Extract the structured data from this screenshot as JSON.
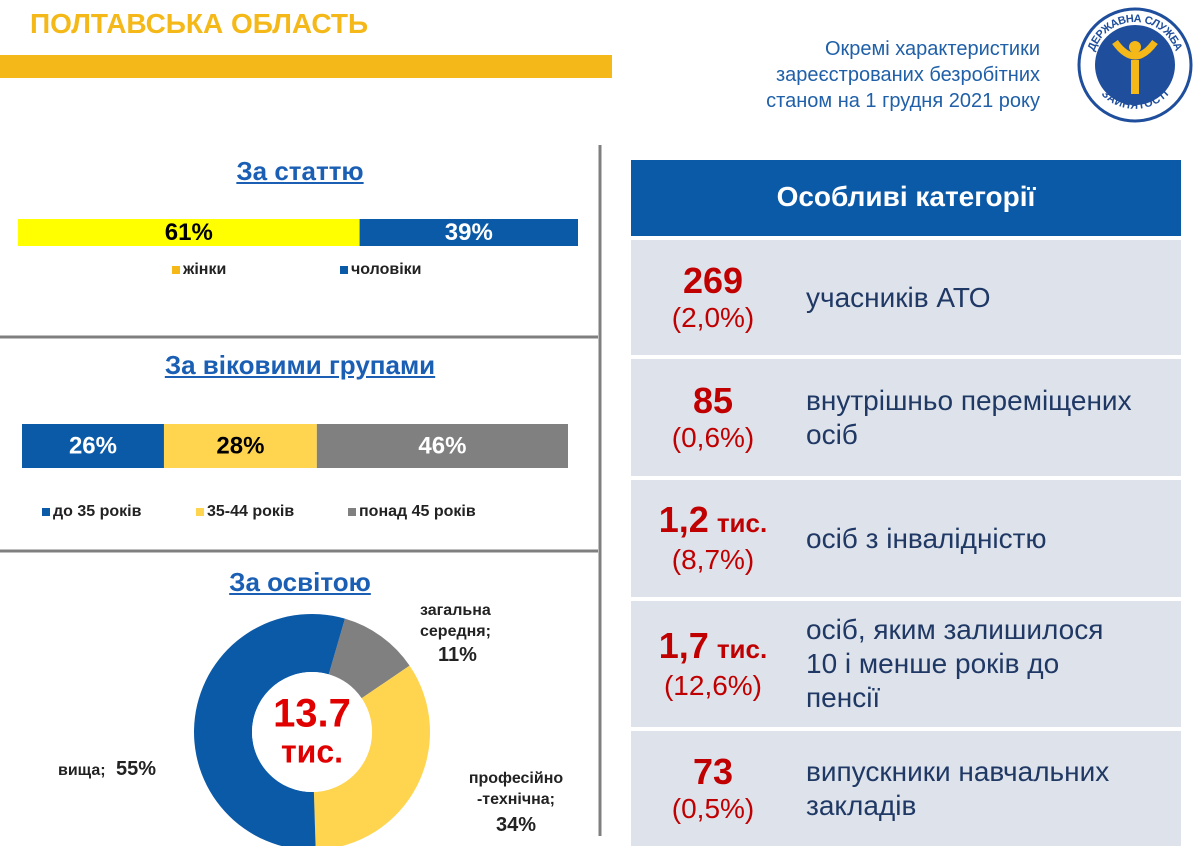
{
  "header": {
    "title": "ПОЛТАВСЬКА ОБЛАСТЬ",
    "subtitle": [
      "Окремі характеристики",
      "зареєстрованих безробітних",
      "станом на 1 грудня 2021 року"
    ]
  },
  "logo": {
    "top": "ДЕРЖАВНА СЛУЖБА",
    "bottom": "ЗАЙНЯТОСТІ"
  },
  "chart_data": [
    {
      "type": "stacked-bar",
      "title": "За статтю",
      "series": [
        {
          "name": "жінки",
          "color": "#ffff00",
          "values": [
            61
          ],
          "value_labels": [
            "61%"
          ]
        },
        {
          "name": "чоловіки",
          "color": "#0b5aa8",
          "values": [
            39
          ],
          "value_labels": [
            "39%"
          ]
        }
      ]
    },
    {
      "type": "stacked-bar",
      "title": "За віковими групами",
      "series": [
        {
          "name": "до 35 років",
          "color": "#0b5aa8",
          "values": [
            26
          ],
          "value_labels": [
            "26%"
          ]
        },
        {
          "name": "35-44 років",
          "color": "#ffd54f",
          "values": [
            28
          ],
          "value_labels": [
            "28%"
          ]
        },
        {
          "name": "понад 45 років",
          "color": "#808080",
          "values": [
            46
          ],
          "value_labels": [
            "46%"
          ]
        }
      ]
    },
    {
      "type": "donut",
      "title": "За освітою",
      "center_label": [
        "13.7",
        "тис."
      ],
      "categories": [
        "загальна середня;",
        "професійно -технічна;",
        "вища;"
      ],
      "values": [
        11,
        34,
        55
      ],
      "value_labels": [
        "11%",
        "34%",
        "55%"
      ],
      "colors": [
        "#808080",
        "#ffd54f",
        "#0b5aa8"
      ]
    }
  ],
  "panel": {
    "title": "Особливі категорії",
    "rows": [
      {
        "number": "269",
        "share": "(2,0%)",
        "label": [
          "учасників АТО"
        ]
      },
      {
        "number": "85",
        "share": "(0,6%)",
        "label": [
          "внутрішньо переміщених",
          "осіб"
        ]
      },
      {
        "number": "1,2",
        "unit": "тис.",
        "share": "(8,7%)",
        "label": [
          "осіб з інвалідністю"
        ]
      },
      {
        "number": "1,7",
        "unit": "тис.",
        "share": "(12,6%)",
        "label": [
          "осіб, яким залишилося",
          "10 і менше років до",
          "пенсії"
        ]
      },
      {
        "number": "73",
        "share": "(0,5%)",
        "label": [
          "випускники навчальних",
          "закладів"
        ]
      }
    ]
  }
}
